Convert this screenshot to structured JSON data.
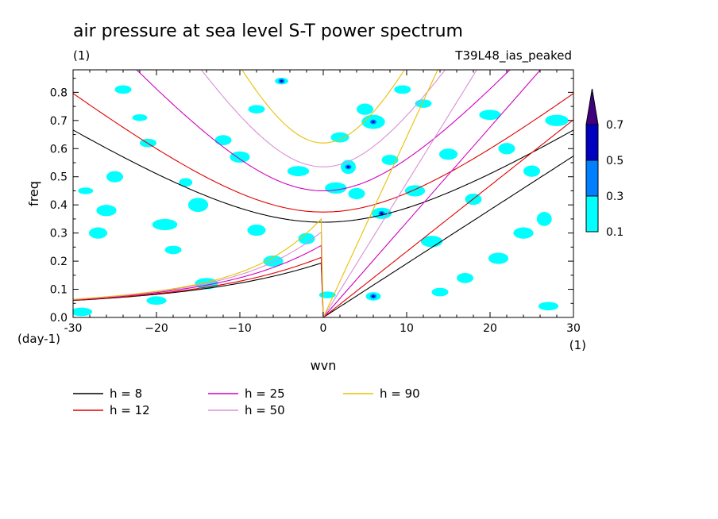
{
  "chart_data": {
    "type": "contour",
    "title": "air pressure at sea level S-T power spectrum",
    "subtitle_left": "(1)",
    "subtitle_right": "T39L48_ias_peaked",
    "xlabel": "wvn",
    "ylabel": "freq",
    "x_unit": "(1)",
    "y_unit": "(day-1)",
    "xlim": [
      -30,
      30
    ],
    "ylim": [
      0,
      0.88
    ],
    "xticks": [
      -30,
      -20,
      -10,
      0,
      10,
      20,
      30
    ],
    "xtick_labels": [
      "-30",
      "−20",
      "−10",
      "0",
      "10",
      "20",
      "30"
    ],
    "yticks": [
      0,
      0.1,
      0.2,
      0.3,
      0.4,
      0.5,
      0.6,
      0.7,
      0.8
    ],
    "ytick_labels": [
      "0.0",
      "0.1",
      "0.2",
      "0.3",
      "0.4",
      "0.5",
      "0.6",
      "0.7",
      "0.8"
    ],
    "colorbar": {
      "levels": [
        "0.1",
        "0.3",
        "0.5",
        "0.7"
      ],
      "colors": [
        "#00ffff",
        "#0080ff",
        "#0000c0",
        "#400080"
      ]
    },
    "series": [
      {
        "name": "h =  8",
        "h": 8,
        "color": "#000000"
      },
      {
        "name": "h = 12",
        "h": 12,
        "color": "#e00000"
      },
      {
        "name": "h = 25",
        "h": 25,
        "color": "#d000c0"
      },
      {
        "name": "h = 50",
        "h": 50,
        "color": "#d890d8"
      },
      {
        "name": "h = 90",
        "h": 90,
        "color": "#e8c000"
      }
    ],
    "blobs": [
      [
        -28.5,
        0.45,
        0.9,
        0.012
      ],
      [
        -26,
        0.38,
        1.2,
        0.02
      ],
      [
        -25,
        0.5,
        1.0,
        0.02
      ],
      [
        -27,
        0.3,
        1.1,
        0.02
      ],
      [
        -22,
        0.71,
        0.9,
        0.012
      ],
      [
        -21,
        0.62,
        1.0,
        0.015
      ],
      [
        -19,
        0.33,
        1.5,
        0.02
      ],
      [
        -18,
        0.24,
        1.0,
        0.015
      ],
      [
        -15,
        0.4,
        1.2,
        0.025
      ],
      [
        -16.5,
        0.48,
        0.8,
        0.015
      ],
      [
        -14,
        0.12,
        1.4,
        0.02
      ],
      [
        -12,
        0.63,
        1.0,
        0.018
      ],
      [
        -10,
        0.57,
        1.2,
        0.02
      ],
      [
        -8,
        0.31,
        1.1,
        0.02
      ],
      [
        -6,
        0.2,
        1.2,
        0.02
      ],
      [
        -5,
        0.84,
        0.8,
        0.012
      ],
      [
        -3,
        0.52,
        1.3,
        0.018
      ],
      [
        -2,
        0.28,
        1.0,
        0.02
      ],
      [
        0.5,
        0.08,
        1.0,
        0.012
      ],
      [
        1.5,
        0.46,
        1.3,
        0.02
      ],
      [
        3,
        0.535,
        0.9,
        0.025
      ],
      [
        4,
        0.44,
        1.0,
        0.02
      ],
      [
        5,
        0.74,
        1.0,
        0.02
      ],
      [
        6,
        0.695,
        1.4,
        0.025
      ],
      [
        6,
        0.075,
        0.9,
        0.015
      ],
      [
        7,
        0.37,
        1.2,
        0.02
      ],
      [
        8,
        0.56,
        1.0,
        0.018
      ],
      [
        9.5,
        0.81,
        1.0,
        0.015
      ],
      [
        11,
        0.45,
        1.2,
        0.02
      ],
      [
        12,
        0.76,
        1.0,
        0.015
      ],
      [
        13,
        0.27,
        1.3,
        0.02
      ],
      [
        15,
        0.58,
        1.1,
        0.02
      ],
      [
        17,
        0.14,
        1.0,
        0.018
      ],
      [
        18,
        0.42,
        1.0,
        0.02
      ],
      [
        20,
        0.72,
        1.3,
        0.018
      ],
      [
        22,
        0.6,
        1.0,
        0.02
      ],
      [
        24,
        0.3,
        1.2,
        0.02
      ],
      [
        25,
        0.52,
        1.0,
        0.02
      ],
      [
        26.5,
        0.35,
        0.9,
        0.025
      ],
      [
        27,
        0.04,
        1.2,
        0.015
      ],
      [
        28,
        0.7,
        1.4,
        0.02
      ],
      [
        -29,
        0.02,
        1.3,
        0.015
      ],
      [
        -24,
        0.81,
        1.0,
        0.015
      ],
      [
        -8,
        0.74,
        1.0,
        0.015
      ],
      [
        2,
        0.64,
        1.1,
        0.018
      ],
      [
        14,
        0.09,
        1.0,
        0.015
      ],
      [
        21,
        0.21,
        1.2,
        0.02
      ],
      [
        -20,
        0.06,
        1.2,
        0.015
      ]
    ]
  },
  "legend": {
    "col1": [
      "h =  8",
      "h = 12"
    ],
    "col2": [
      "h = 25",
      "h = 50"
    ],
    "col3": [
      "h = 90"
    ]
  }
}
